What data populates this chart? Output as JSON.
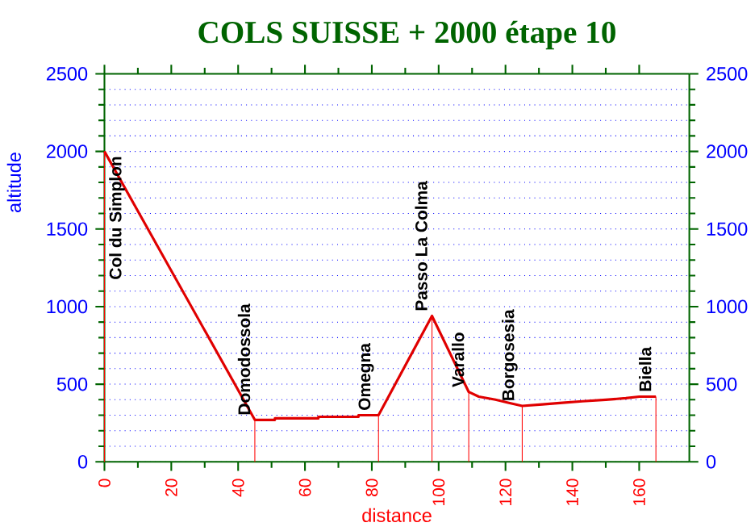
{
  "chart_data": {
    "type": "line",
    "title": "COLS SUISSE + 2000 étape 10",
    "xlabel": "distance",
    "ylabel": "altitude",
    "xlim": [
      0,
      175
    ],
    "xticks": [
      0,
      20,
      40,
      60,
      80,
      100,
      120,
      140,
      160
    ],
    "ylim": [
      0,
      2500
    ],
    "yticks": [
      0,
      500,
      1000,
      1500,
      2000,
      2500
    ],
    "y2lim": [
      0,
      2500
    ],
    "y2ticks": [
      0,
      500,
      1000,
      1500,
      2000,
      2500
    ],
    "grid": "y",
    "marker": "none",
    "line_style": "solid",
    "series": [
      {
        "color": "#e00000",
        "x": [
          0,
          45,
          51,
          51,
          64,
          64,
          76,
          76,
          82,
          98,
          109,
          112,
          117,
          121,
          125,
          131,
          137,
          143,
          150,
          156,
          160,
          165
        ],
        "values": [
          2000,
          270,
          270,
          280,
          280,
          290,
          290,
          300,
          300,
          940,
          450,
          420,
          400,
          380,
          360,
          370,
          380,
          390,
          400,
          410,
          420,
          420
        ]
      }
    ],
    "annotations": [
      {
        "text": "Col du Simplon",
        "x": 0,
        "y": 2000
      },
      {
        "text": "Domodossola",
        "x": 45,
        "y": 270
      },
      {
        "text": "Omegna",
        "x": 82,
        "y": 300
      },
      {
        "text": "Passo La Colma",
        "x": 98,
        "y": 940
      },
      {
        "text": "Varallo",
        "x": 109,
        "y": 450
      },
      {
        "text": "Borgosesia",
        "x": 125,
        "y": 360
      },
      {
        "text": "Biella",
        "x": 165,
        "y": 420
      }
    ]
  }
}
